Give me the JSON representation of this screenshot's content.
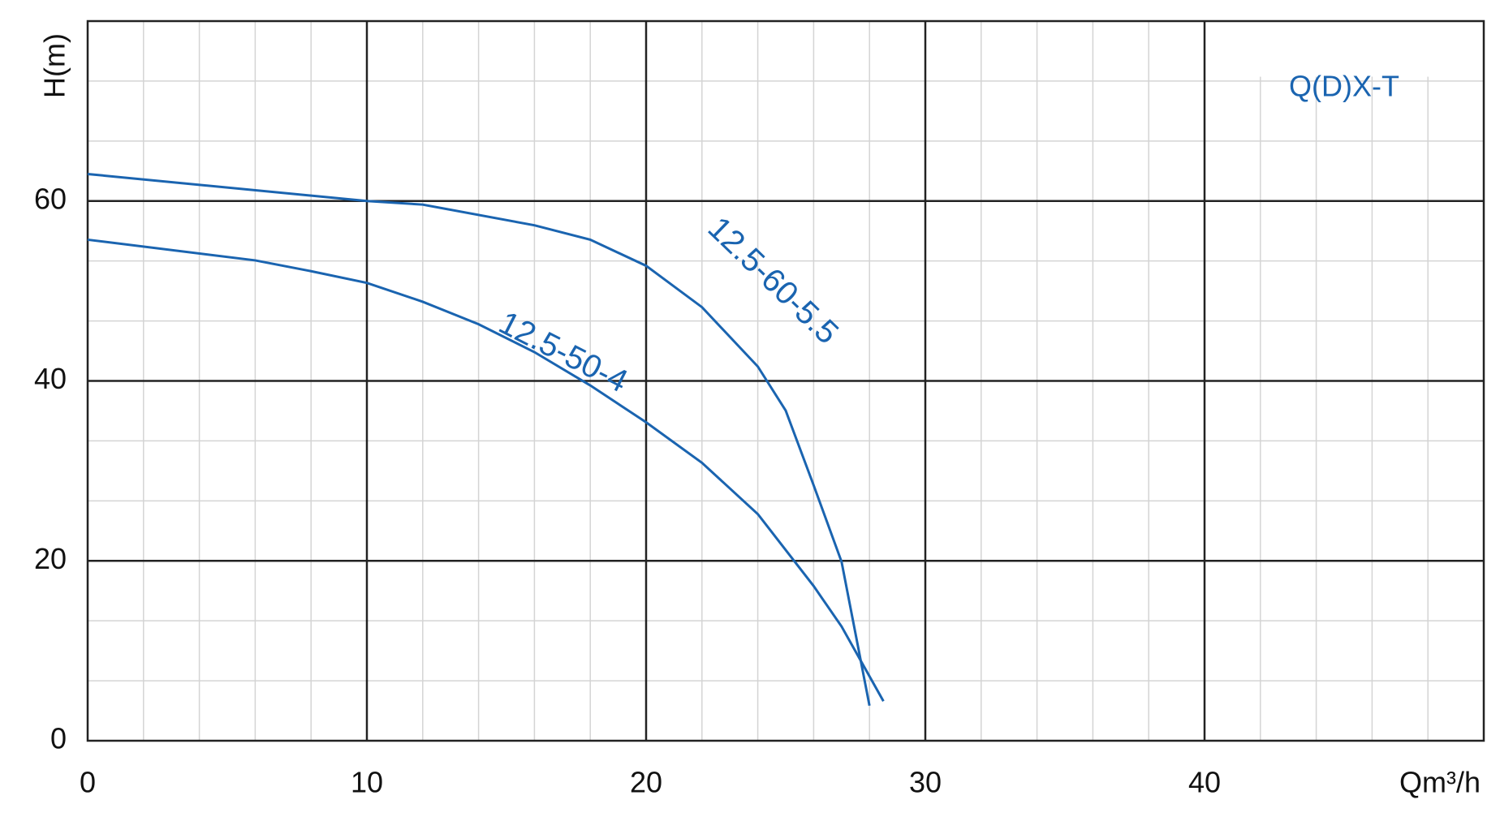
{
  "chart_data": {
    "type": "line",
    "x_label": "Qm³/h",
    "y_label": "H(m)",
    "annotations": [
      {
        "text": "Q(D)X-T"
      }
    ],
    "xlim": [
      0,
      50
    ],
    "ylim": [
      0,
      80
    ],
    "xticks": [
      0,
      10,
      20,
      30,
      40
    ],
    "yticks": [
      0,
      20,
      40,
      60
    ],
    "grid": true,
    "series": [
      {
        "name": "12.5-60-5.5",
        "color": "#1a64b0",
        "x": [
          0,
          10,
          12,
          16,
          18,
          20,
          22,
          24,
          25,
          26,
          27,
          28
        ],
        "values": [
          63,
          60,
          59.6,
          57.3,
          55.7,
          52.8,
          48.2,
          41.6,
          36.7,
          28.4,
          19.9,
          3.9
        ]
      },
      {
        "name": "12.5-50-4",
        "color": "#1a64b0",
        "x": [
          0,
          6,
          8,
          10,
          12,
          14,
          16,
          18,
          20,
          22,
          24,
          26,
          27,
          28.5
        ],
        "values": [
          55.7,
          53.4,
          52.2,
          50.9,
          48.8,
          46.3,
          43.2,
          39.5,
          35.4,
          30.9,
          25.2,
          17.2,
          12.7,
          4.4
        ]
      }
    ]
  }
}
